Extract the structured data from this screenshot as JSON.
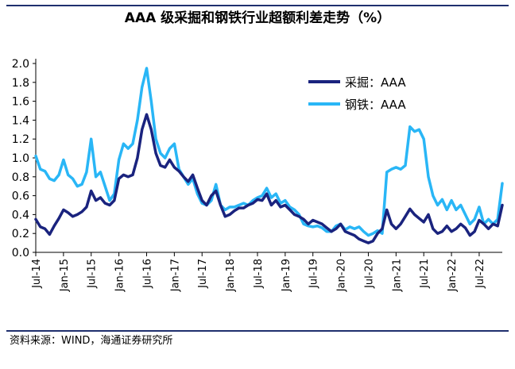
{
  "title": "AAA 级采掘和钢铁行业超额利差走势（%）",
  "source": "资料来源：WIND，海通证券研究所",
  "chart_data": {
    "type": "line",
    "title": "AAA 级采掘和钢铁行业超额利差走势（%）",
    "xlabel": "",
    "ylabel": "",
    "ylim": [
      0,
      2.0
    ],
    "yticks": [
      "0.0",
      "0.2",
      "0.4",
      "0.6",
      "0.8",
      "1.0",
      "1.2",
      "1.4",
      "1.6",
      "1.8",
      "2.0"
    ],
    "xlim": [
      "2014-07",
      "2022-12"
    ],
    "xticks": [
      "Jul-14",
      "Jan-15",
      "Jul-15",
      "Jan-16",
      "Jul-16",
      "Jan-17",
      "Jul-17",
      "Jan-18",
      "Jul-18",
      "Jan-19",
      "Jul-19",
      "Jan-20",
      "Jul-20",
      "Jan-21",
      "Jul-21",
      "Jan-22",
      "Jul-22"
    ],
    "grid": false,
    "legend_position": "top-right",
    "series": [
      {
        "name": "采掘：AAA",
        "color": "#1a237e",
        "points": [
          [
            "2014-07",
            0.35
          ],
          [
            "2014-08",
            0.27
          ],
          [
            "2014-09",
            0.25
          ],
          [
            "2014-10",
            0.19
          ],
          [
            "2014-11",
            0.28
          ],
          [
            "2014-12",
            0.36
          ],
          [
            "2015-01",
            0.45
          ],
          [
            "2015-02",
            0.42
          ],
          [
            "2015-03",
            0.38
          ],
          [
            "2015-04",
            0.4
          ],
          [
            "2015-05",
            0.43
          ],
          [
            "2015-06",
            0.48
          ],
          [
            "2015-07",
            0.65
          ],
          [
            "2015-08",
            0.55
          ],
          [
            "2015-09",
            0.58
          ],
          [
            "2015-10",
            0.52
          ],
          [
            "2015-11",
            0.5
          ],
          [
            "2015-12",
            0.55
          ],
          [
            "2016-01",
            0.78
          ],
          [
            "2016-02",
            0.82
          ],
          [
            "2016-03",
            0.8
          ],
          [
            "2016-04",
            0.82
          ],
          [
            "2016-05",
            1.0
          ],
          [
            "2016-06",
            1.3
          ],
          [
            "2016-07",
            1.46
          ],
          [
            "2016-08",
            1.3
          ],
          [
            "2016-09",
            1.05
          ],
          [
            "2016-10",
            0.92
          ],
          [
            "2016-11",
            0.9
          ],
          [
            "2016-12",
            0.98
          ],
          [
            "2017-01",
            0.9
          ],
          [
            "2017-02",
            0.86
          ],
          [
            "2017-03",
            0.8
          ],
          [
            "2017-04",
            0.75
          ],
          [
            "2017-05",
            0.82
          ],
          [
            "2017-06",
            0.68
          ],
          [
            "2017-07",
            0.55
          ],
          [
            "2017-08",
            0.5
          ],
          [
            "2017-09",
            0.6
          ],
          [
            "2017-10",
            0.65
          ],
          [
            "2017-11",
            0.5
          ],
          [
            "2017-12",
            0.38
          ],
          [
            "2018-01",
            0.4
          ],
          [
            "2018-02",
            0.44
          ],
          [
            "2018-03",
            0.47
          ],
          [
            "2018-04",
            0.47
          ],
          [
            "2018-05",
            0.5
          ],
          [
            "2018-06",
            0.52
          ],
          [
            "2018-07",
            0.56
          ],
          [
            "2018-08",
            0.55
          ],
          [
            "2018-09",
            0.62
          ],
          [
            "2018-10",
            0.5
          ],
          [
            "2018-11",
            0.55
          ],
          [
            "2018-12",
            0.48
          ],
          [
            "2019-01",
            0.5
          ],
          [
            "2019-02",
            0.45
          ],
          [
            "2019-03",
            0.4
          ],
          [
            "2019-04",
            0.38
          ],
          [
            "2019-05",
            0.35
          ],
          [
            "2019-06",
            0.3
          ],
          [
            "2019-07",
            0.34
          ],
          [
            "2019-08",
            0.32
          ],
          [
            "2019-09",
            0.3
          ],
          [
            "2019-10",
            0.26
          ],
          [
            "2019-11",
            0.22
          ],
          [
            "2019-12",
            0.25
          ],
          [
            "2020-01",
            0.3
          ],
          [
            "2020-02",
            0.22
          ],
          [
            "2020-03",
            0.2
          ],
          [
            "2020-04",
            0.18
          ],
          [
            "2020-05",
            0.14
          ],
          [
            "2020-06",
            0.12
          ],
          [
            "2020-07",
            0.1
          ],
          [
            "2020-08",
            0.12
          ],
          [
            "2020-09",
            0.2
          ],
          [
            "2020-10",
            0.25
          ],
          [
            "2020-11",
            0.45
          ],
          [
            "2020-12",
            0.3
          ],
          [
            "2021-01",
            0.25
          ],
          [
            "2021-02",
            0.3
          ],
          [
            "2021-03",
            0.38
          ],
          [
            "2021-04",
            0.46
          ],
          [
            "2021-05",
            0.4
          ],
          [
            "2021-06",
            0.36
          ],
          [
            "2021-07",
            0.32
          ],
          [
            "2021-08",
            0.4
          ],
          [
            "2021-09",
            0.25
          ],
          [
            "2021-10",
            0.2
          ],
          [
            "2021-11",
            0.22
          ],
          [
            "2021-12",
            0.28
          ],
          [
            "2022-01",
            0.22
          ],
          [
            "2022-02",
            0.25
          ],
          [
            "2022-03",
            0.3
          ],
          [
            "2022-04",
            0.26
          ],
          [
            "2022-05",
            0.18
          ],
          [
            "2022-06",
            0.22
          ],
          [
            "2022-07",
            0.34
          ],
          [
            "2022-08",
            0.3
          ],
          [
            "2022-09",
            0.25
          ],
          [
            "2022-10",
            0.3
          ],
          [
            "2022-11",
            0.28
          ],
          [
            "2022-12",
            0.5
          ]
        ]
      },
      {
        "name": "钢铁：AAA",
        "color": "#29b6f6",
        "points": [
          [
            "2014-07",
            1.02
          ],
          [
            "2014-08",
            0.88
          ],
          [
            "2014-09",
            0.86
          ],
          [
            "2014-10",
            0.78
          ],
          [
            "2014-11",
            0.76
          ],
          [
            "2014-12",
            0.82
          ],
          [
            "2015-01",
            0.98
          ],
          [
            "2015-02",
            0.82
          ],
          [
            "2015-03",
            0.78
          ],
          [
            "2015-04",
            0.7
          ],
          [
            "2015-05",
            0.72
          ],
          [
            "2015-06",
            0.85
          ],
          [
            "2015-07",
            1.2
          ],
          [
            "2015-08",
            0.8
          ],
          [
            "2015-09",
            0.85
          ],
          [
            "2015-10",
            0.7
          ],
          [
            "2015-11",
            0.55
          ],
          [
            "2015-12",
            0.62
          ],
          [
            "2016-01",
            0.98
          ],
          [
            "2016-02",
            1.15
          ],
          [
            "2016-03",
            1.1
          ],
          [
            "2016-04",
            1.15
          ],
          [
            "2016-05",
            1.4
          ],
          [
            "2016-06",
            1.75
          ],
          [
            "2016-07",
            1.95
          ],
          [
            "2016-08",
            1.6
          ],
          [
            "2016-09",
            1.2
          ],
          [
            "2016-10",
            1.05
          ],
          [
            "2016-11",
            1.0
          ],
          [
            "2016-12",
            1.1
          ],
          [
            "2017-01",
            1.15
          ],
          [
            "2017-02",
            0.88
          ],
          [
            "2017-03",
            0.8
          ],
          [
            "2017-04",
            0.72
          ],
          [
            "2017-05",
            0.78
          ],
          [
            "2017-06",
            0.62
          ],
          [
            "2017-07",
            0.52
          ],
          [
            "2017-08",
            0.5
          ],
          [
            "2017-09",
            0.55
          ],
          [
            "2017-10",
            0.72
          ],
          [
            "2017-11",
            0.5
          ],
          [
            "2017-12",
            0.45
          ],
          [
            "2018-01",
            0.48
          ],
          [
            "2018-02",
            0.48
          ],
          [
            "2018-03",
            0.5
          ],
          [
            "2018-04",
            0.52
          ],
          [
            "2018-05",
            0.5
          ],
          [
            "2018-06",
            0.55
          ],
          [
            "2018-07",
            0.58
          ],
          [
            "2018-08",
            0.6
          ],
          [
            "2018-09",
            0.68
          ],
          [
            "2018-10",
            0.58
          ],
          [
            "2018-11",
            0.62
          ],
          [
            "2018-12",
            0.52
          ],
          [
            "2019-01",
            0.55
          ],
          [
            "2019-02",
            0.48
          ],
          [
            "2019-03",
            0.45
          ],
          [
            "2019-04",
            0.4
          ],
          [
            "2019-05",
            0.3
          ],
          [
            "2019-06",
            0.28
          ],
          [
            "2019-07",
            0.27
          ],
          [
            "2019-08",
            0.28
          ],
          [
            "2019-09",
            0.26
          ],
          [
            "2019-10",
            0.22
          ],
          [
            "2019-11",
            0.22
          ],
          [
            "2019-12",
            0.28
          ],
          [
            "2020-01",
            0.3
          ],
          [
            "2020-02",
            0.24
          ],
          [
            "2020-03",
            0.27
          ],
          [
            "2020-04",
            0.25
          ],
          [
            "2020-05",
            0.27
          ],
          [
            "2020-06",
            0.22
          ],
          [
            "2020-07",
            0.18
          ],
          [
            "2020-08",
            0.2
          ],
          [
            "2020-09",
            0.23
          ],
          [
            "2020-10",
            0.2
          ],
          [
            "2020-11",
            0.85
          ],
          [
            "2020-12",
            0.88
          ],
          [
            "2021-01",
            0.9
          ],
          [
            "2021-02",
            0.88
          ],
          [
            "2021-03",
            0.92
          ],
          [
            "2021-04",
            1.33
          ],
          [
            "2021-05",
            1.28
          ],
          [
            "2021-06",
            1.3
          ],
          [
            "2021-07",
            1.2
          ],
          [
            "2021-08",
            0.8
          ],
          [
            "2021-09",
            0.6
          ],
          [
            "2021-10",
            0.5
          ],
          [
            "2021-11",
            0.56
          ],
          [
            "2021-12",
            0.45
          ],
          [
            "2022-01",
            0.55
          ],
          [
            "2022-02",
            0.45
          ],
          [
            "2022-03",
            0.5
          ],
          [
            "2022-04",
            0.4
          ],
          [
            "2022-05",
            0.3
          ],
          [
            "2022-06",
            0.35
          ],
          [
            "2022-07",
            0.48
          ],
          [
            "2022-08",
            0.3
          ],
          [
            "2022-09",
            0.35
          ],
          [
            "2022-10",
            0.3
          ],
          [
            "2022-11",
            0.35
          ],
          [
            "2022-12",
            0.73
          ]
        ]
      }
    ]
  }
}
